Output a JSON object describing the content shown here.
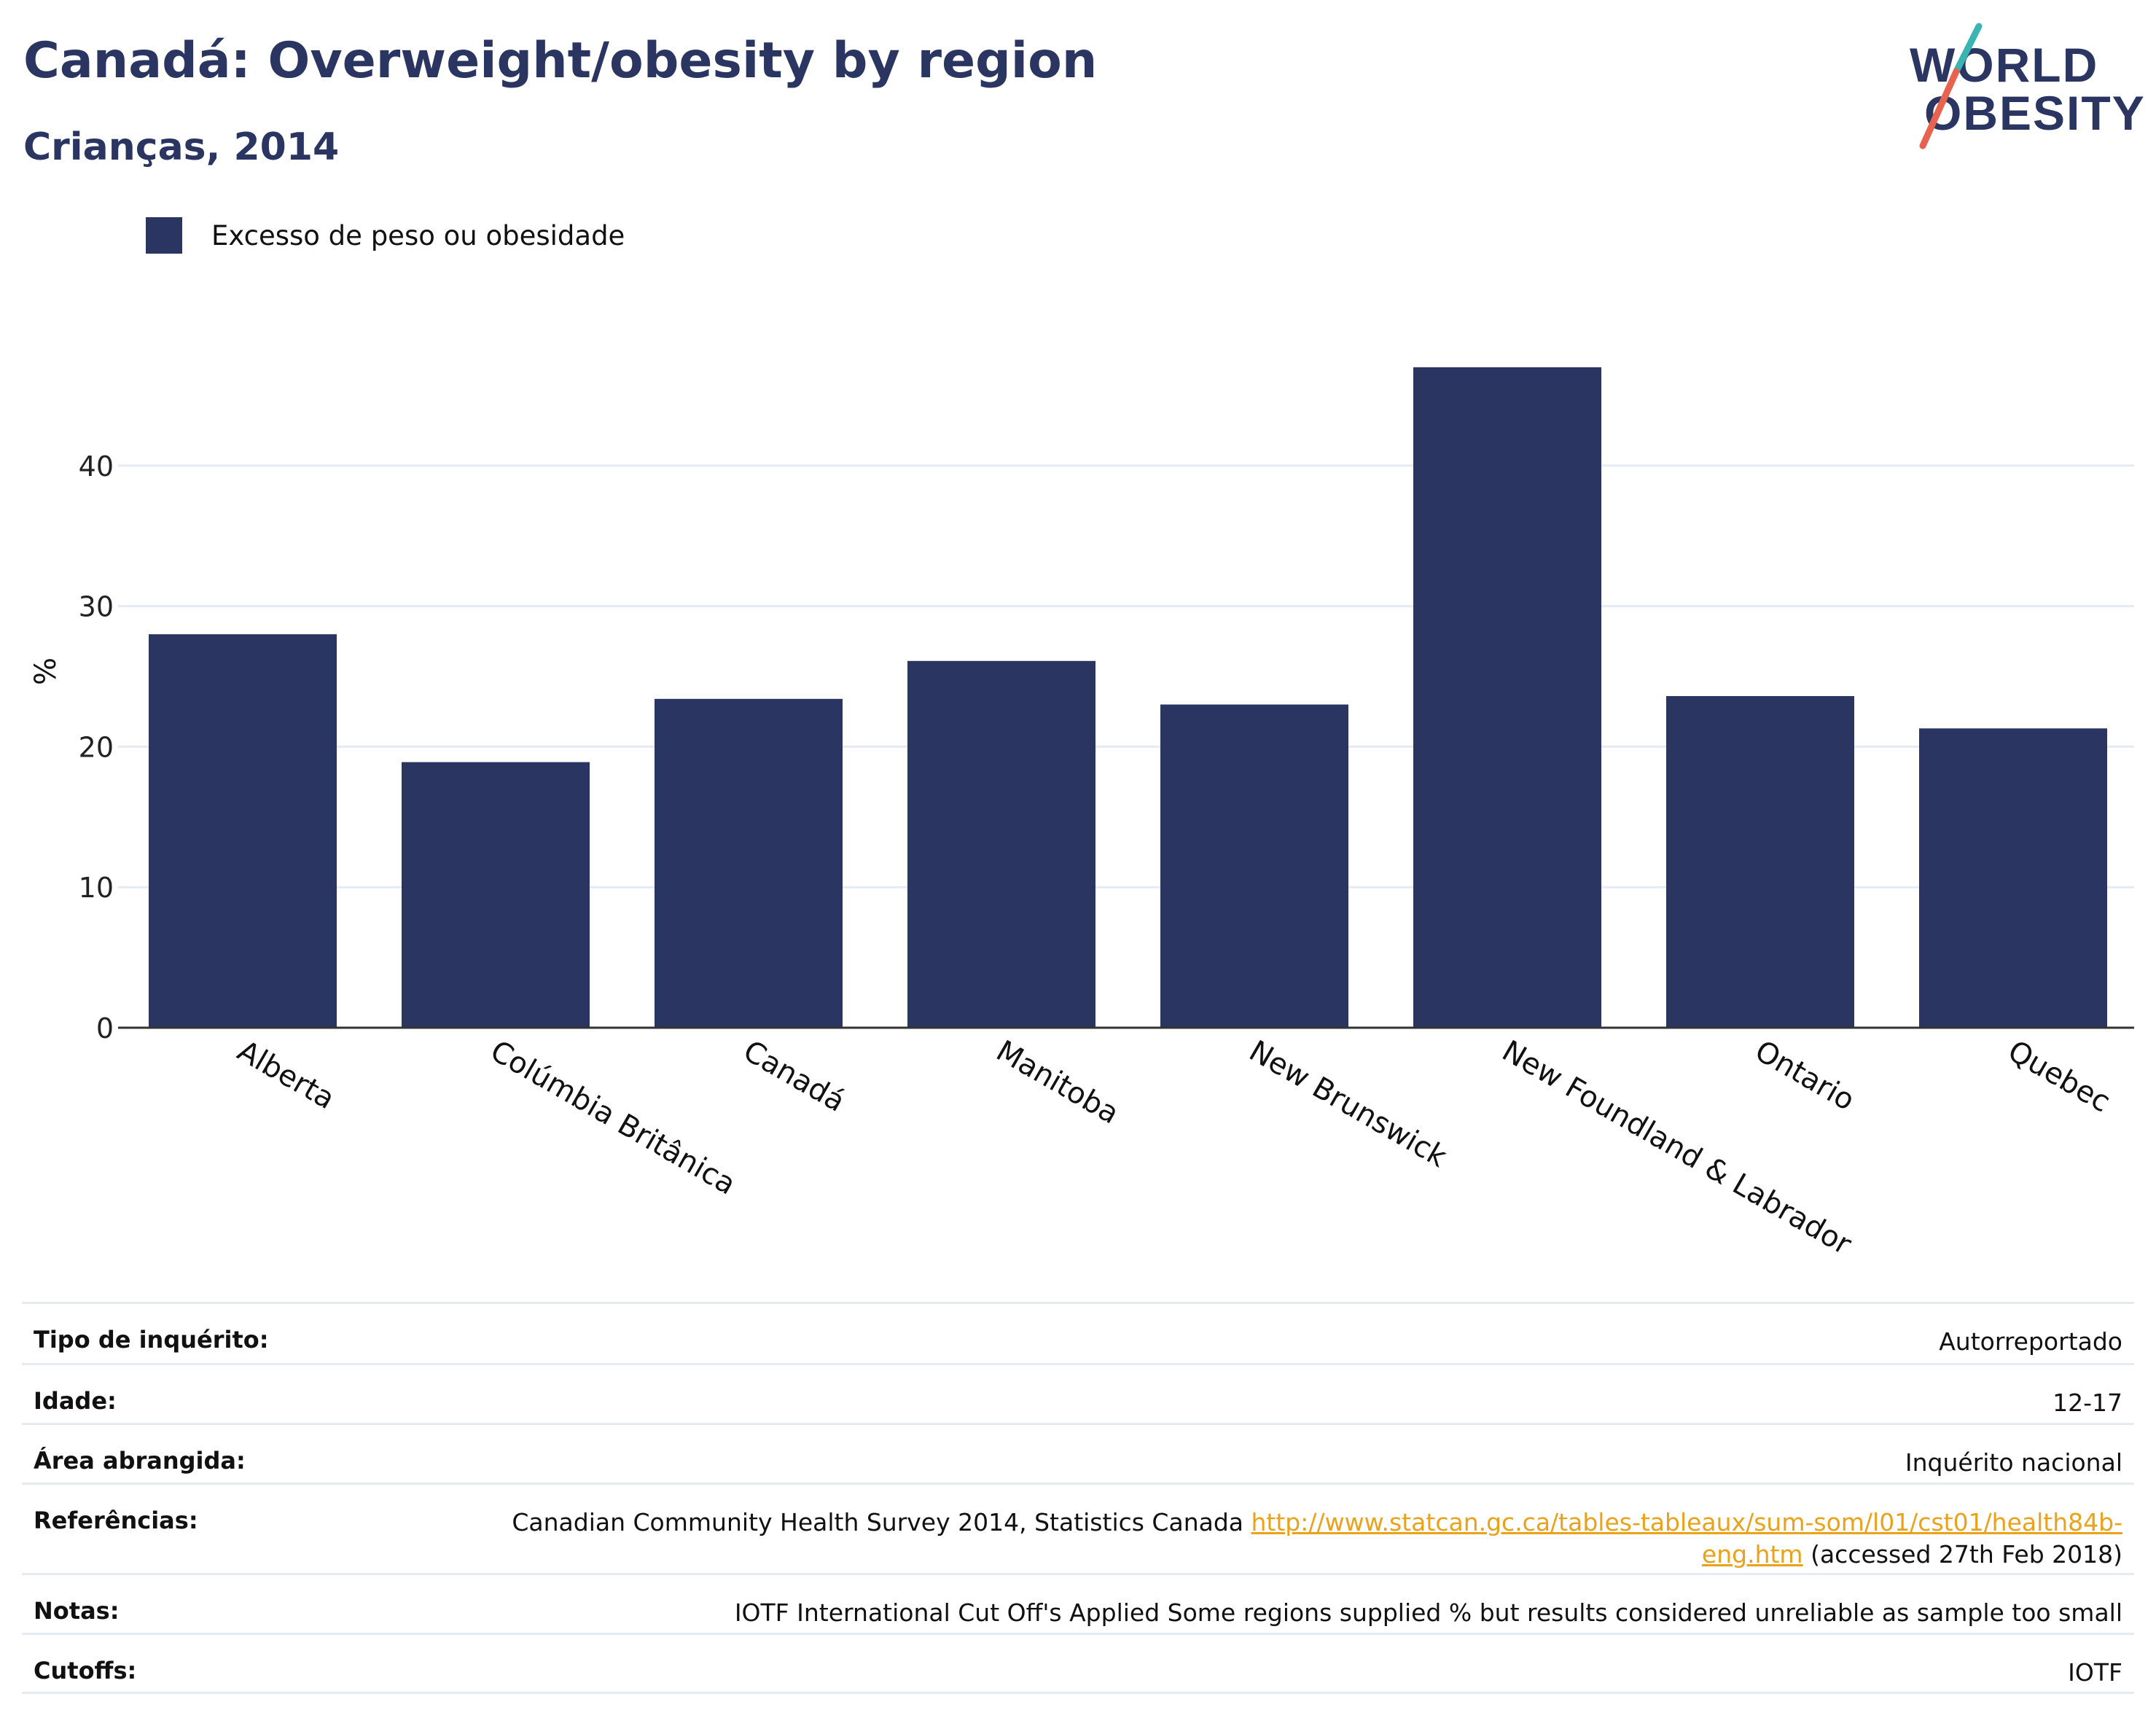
{
  "header": {
    "title": "Canadá: Overweight/obesity by region",
    "subtitle": "Crianças, 2014"
  },
  "logo": {
    "line1": "WORLD",
    "line2": "OBESITY"
  },
  "colors": {
    "bar": "#2a3562",
    "grid": "#e6eaf2",
    "axis": "#333333",
    "link": "#e9a21a",
    "logo_slash_top": "#3bb5b4",
    "logo_slash_bottom": "#e8634f"
  },
  "chart_data": {
    "type": "bar",
    "title": "Canadá: Overweight/obesity by region",
    "subtitle": "Crianças, 2014",
    "categories": [
      "Alberta",
      "Colúmbia Britânica",
      "Canadá",
      "Manitoba",
      "New Brunswick",
      "New Foundland & Labrador",
      "Ontario",
      "Quebec"
    ],
    "series": [
      {
        "name": "Excesso de peso ou obesidade",
        "values": [
          28.0,
          18.9,
          23.4,
          26.1,
          23.0,
          47.0,
          23.6,
          21.3
        ]
      }
    ],
    "ylabel": "%",
    "xlabel": "",
    "yticks": [
      0,
      10,
      20,
      30,
      40
    ],
    "ylim": [
      0,
      50
    ],
    "grid": true,
    "legend_position": "top-left"
  },
  "meta": {
    "rows": [
      {
        "key": "Tipo de inquérito:",
        "value": "Autorreportado"
      },
      {
        "key": "Idade:",
        "value": "12-17"
      },
      {
        "key": "Área abrangida:",
        "value": "Inquérito nacional"
      },
      {
        "key": "Referências:",
        "value_prefix": "Canadian Community Health Survey 2014, Statistics Canada",
        "link_line1": "http://www.statcan.gc.ca/tables-tableaux/sum-som/l01/cst01/health84b-",
        "link_line2": "eng.htm",
        "value_suffix": "(accessed 27th Feb 2018)"
      },
      {
        "key": "Notas:",
        "value": "IOTF International Cut Off's Applied Some regions supplied % but results considered unreliable as sample too small"
      },
      {
        "key": "Cutoffs:",
        "value": "IOTF"
      }
    ]
  }
}
